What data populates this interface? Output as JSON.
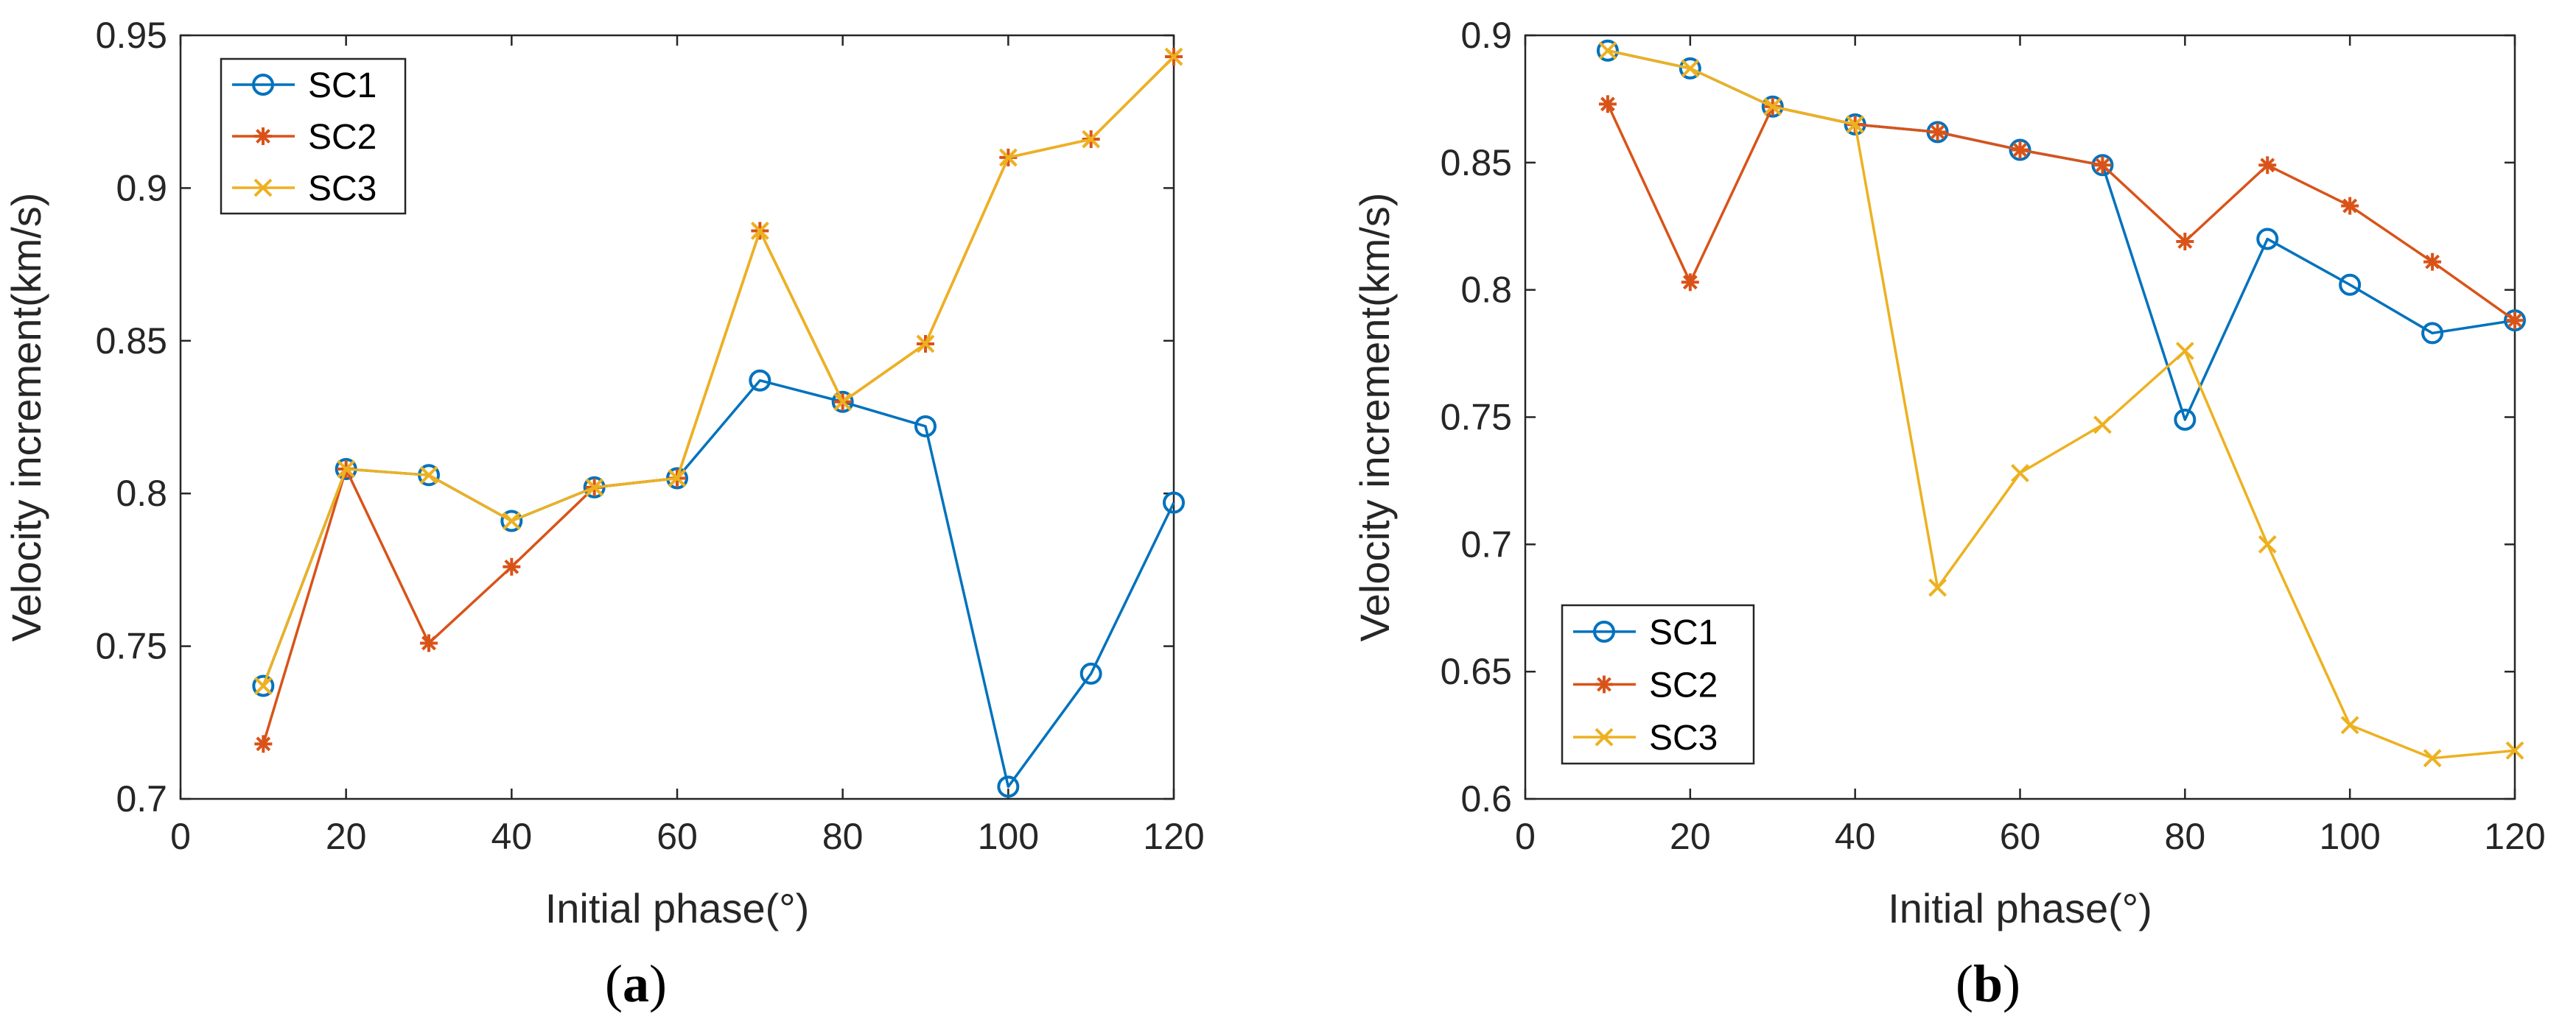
{
  "colors": {
    "SC1": "#0072BD",
    "SC2": "#D95319",
    "SC3": "#EDB120",
    "axis": "#262626"
  },
  "chart_data": [
    {
      "type": "line",
      "panel": "a",
      "panel_label": {
        "open": "(",
        "letter": "a",
        "close": ")"
      },
      "xlabel": "Initial phase(°)",
      "ylabel": "Velocity increment(km/s)",
      "xlim": [
        0,
        120
      ],
      "ylim": [
        0.7,
        0.95
      ],
      "xticks": [
        0,
        20,
        40,
        60,
        80,
        100,
        120
      ],
      "xtick_labels": [
        "0",
        "20",
        "40",
        "60",
        "80",
        "100",
        "120"
      ],
      "yticks": [
        0.7,
        0.75,
        0.8,
        0.85,
        0.9,
        0.95
      ],
      "ytick_labels": [
        "0.7",
        "0.75",
        "0.8",
        "0.85",
        "0.9",
        "0.95"
      ],
      "legend_position": "top-left",
      "grid": false,
      "x": [
        10,
        20,
        30,
        40,
        50,
        60,
        70,
        80,
        90,
        100,
        110,
        120
      ],
      "series": [
        {
          "name": "SC1",
          "marker": "o",
          "values": [
            0.737,
            0.808,
            0.806,
            0.791,
            0.802,
            0.805,
            0.837,
            0.83,
            0.822,
            0.704,
            0.741,
            0.797
          ]
        },
        {
          "name": "SC2",
          "marker": "*",
          "values": [
            0.718,
            0.808,
            0.751,
            0.776,
            0.802,
            0.805,
            0.886,
            0.83,
            0.849,
            0.91,
            0.916,
            0.943
          ]
        },
        {
          "name": "SC3",
          "marker": "x",
          "values": [
            0.737,
            0.808,
            0.806,
            0.791,
            0.802,
            0.805,
            0.886,
            0.83,
            0.849,
            0.91,
            0.916,
            0.943
          ]
        }
      ]
    },
    {
      "type": "line",
      "panel": "b",
      "panel_label": {
        "open": "(",
        "letter": "b",
        "close": ")"
      },
      "xlabel": "Initial phase(°)",
      "ylabel": "Velocity increment(km/s)",
      "xlim": [
        0,
        120
      ],
      "ylim": [
        0.6,
        0.9
      ],
      "xticks": [
        0,
        20,
        40,
        60,
        80,
        100,
        120
      ],
      "xtick_labels": [
        "0",
        "20",
        "40",
        "60",
        "80",
        "100",
        "120"
      ],
      "yticks": [
        0.6,
        0.65,
        0.7,
        0.75,
        0.8,
        0.85,
        0.9
      ],
      "ytick_labels": [
        "0.6",
        "0.65",
        "0.7",
        "0.75",
        "0.8",
        "0.85",
        "0.9"
      ],
      "legend_position": "bottom-left",
      "grid": false,
      "x": [
        10,
        20,
        30,
        40,
        50,
        60,
        70,
        80,
        90,
        100,
        110,
        120
      ],
      "series": [
        {
          "name": "SC1",
          "marker": "o",
          "values": [
            0.894,
            0.887,
            0.872,
            0.865,
            0.862,
            0.855,
            0.849,
            0.749,
            0.82,
            0.802,
            0.783,
            0.788
          ]
        },
        {
          "name": "SC2",
          "marker": "*",
          "values": [
            0.873,
            0.803,
            0.872,
            0.865,
            0.862,
            0.855,
            0.849,
            0.819,
            0.849,
            0.833,
            0.811,
            0.788
          ]
        },
        {
          "name": "SC3",
          "marker": "x",
          "values": [
            0.894,
            0.887,
            0.872,
            0.865,
            0.683,
            0.728,
            0.747,
            0.776,
            0.7,
            0.629,
            0.616,
            0.619
          ]
        }
      ]
    }
  ]
}
